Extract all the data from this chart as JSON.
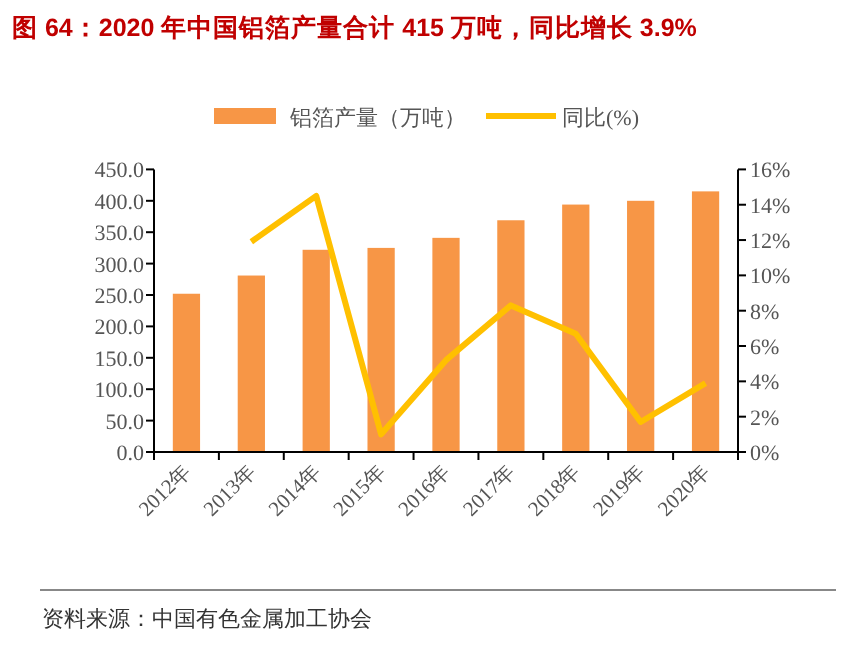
{
  "chart_data": {
    "type": "bar",
    "title": "图 64：2020 年中国铝箔产量合计 415 万吨，同比增长 3.9%",
    "categories": [
      "2012年",
      "2013年",
      "2014年",
      "2015年",
      "2016年",
      "2017年",
      "2018年",
      "2019年",
      "2020年"
    ],
    "series": [
      {
        "name": "铝箔产量（万吨）",
        "color": "#f79646",
        "values": [
          252,
          281,
          322,
          325,
          341,
          369,
          394,
          400,
          415
        ]
      },
      {
        "name": "同比(%)",
        "type": "line",
        "axis": "y2",
        "color": "#ffc000",
        "values": [
          null,
          11.9,
          14.5,
          1.0,
          5.2,
          8.3,
          6.7,
          1.7,
          3.9
        ]
      }
    ],
    "ylim": [
      0,
      450
    ],
    "yticks": [
      {
        "value": 0,
        "label": "0.0"
      },
      {
        "value": 50,
        "label": "50.0"
      },
      {
        "value": 100,
        "label": "100.0"
      },
      {
        "value": 150,
        "label": "150.0"
      },
      {
        "value": 200,
        "label": "200.0"
      },
      {
        "value": 250,
        "label": "250.0"
      },
      {
        "value": 300,
        "label": "300.0"
      },
      {
        "value": 350,
        "label": "350.0"
      },
      {
        "value": 400,
        "label": "400.0"
      },
      {
        "value": 450,
        "label": "450.0"
      }
    ],
    "y2lim": [
      0,
      16
    ],
    "y2ticks": [
      {
        "value": 0,
        "label": "0%"
      },
      {
        "value": 2,
        "label": "2%"
      },
      {
        "value": 4,
        "label": "4%"
      },
      {
        "value": 6,
        "label": "6%"
      },
      {
        "value": 8,
        "label": "8%"
      },
      {
        "value": 10,
        "label": "10%"
      },
      {
        "value": 12,
        "label": "12%"
      },
      {
        "value": 14,
        "label": "14%"
      },
      {
        "value": 16,
        "label": "16%"
      }
    ],
    "legend": "top",
    "grid": false,
    "annotations": [
      "资料来源：中国有色金属加工协会"
    ]
  }
}
